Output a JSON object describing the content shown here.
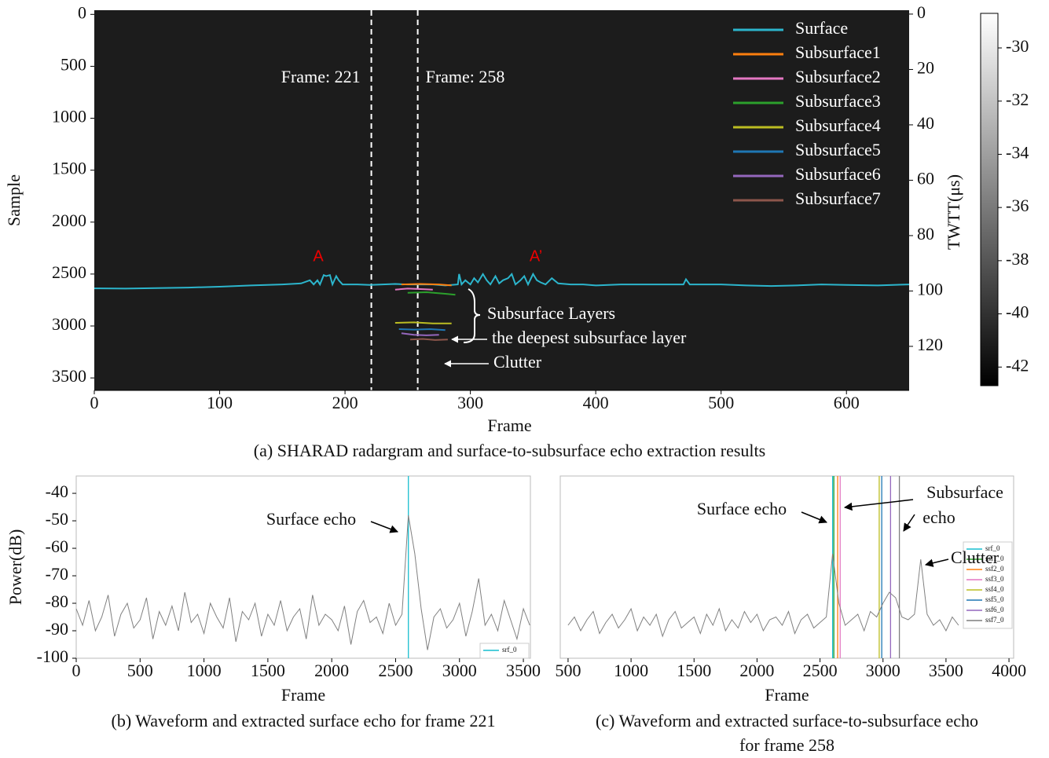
{
  "chart_data": [
    {
      "type": "radargram",
      "caption": "(a) SHARAD radargram and surface-to-subsurface echo extraction results",
      "xlabel": "Frame",
      "ylabel": "Sample",
      "y2label": "TWTT(μs)",
      "xlim": [
        0,
        650
      ],
      "xticks": [
        0,
        100,
        200,
        300,
        400,
        500,
        600
      ],
      "ylim": [
        -40,
        3620
      ],
      "y_inverted": true,
      "yticks": [
        0,
        500,
        1000,
        1500,
        2000,
        2500,
        3000,
        3500
      ],
      "y2lim": [
        -1.4,
        135.9
      ],
      "y2ticks": [
        0,
        20,
        40,
        60,
        80,
        100,
        120
      ],
      "colorbar": {
        "lim": [
          -42.7,
          -28.7
        ],
        "ticks": [
          -30,
          -32,
          -34,
          -36,
          -38,
          -40,
          -42
        ]
      },
      "legend": "upper right",
      "frame_lines": [
        {
          "x": 221,
          "label": "Frame: 221"
        },
        {
          "x": 258,
          "label": "Frame: 258"
        }
      ],
      "annotations": [
        "A",
        "A’",
        "Subsurface Layers",
        "the deepest subsurface layer",
        "Clutter"
      ],
      "series": [
        {
          "name": "Surface",
          "color": "#2cb5cc",
          "x": [
            0,
            25,
            50,
            75,
            100,
            125,
            150,
            165,
            172,
            175,
            178,
            180,
            183,
            185,
            188,
            190,
            193,
            195,
            198,
            200,
            210,
            220,
            230,
            240,
            250,
            260,
            270,
            280,
            290,
            291,
            293,
            296,
            300,
            303,
            306,
            310,
            313,
            316,
            320,
            323,
            326,
            330,
            333,
            336,
            340,
            343,
            346,
            350,
            353,
            356,
            360,
            365,
            370,
            380,
            390,
            400,
            410,
            420,
            440,
            460,
            470,
            472,
            475,
            480,
            500,
            520,
            540,
            560,
            580,
            600,
            625,
            650
          ],
          "values": [
            2638,
            2640,
            2635,
            2630,
            2622,
            2610,
            2600,
            2590,
            2560,
            2600,
            2560,
            2600,
            2510,
            2520,
            2510,
            2600,
            2520,
            2560,
            2600,
            2600,
            2600,
            2605,
            2600,
            2595,
            2600,
            2600,
            2600,
            2610,
            2600,
            2500,
            2600,
            2560,
            2600,
            2540,
            2580,
            2500,
            2560,
            2600,
            2520,
            2590,
            2560,
            2540,
            2500,
            2600,
            2560,
            2520,
            2600,
            2500,
            2560,
            2580,
            2600,
            2540,
            2590,
            2600,
            2600,
            2610,
            2605,
            2600,
            2600,
            2600,
            2600,
            2550,
            2600,
            2600,
            2600,
            2610,
            2615,
            2610,
            2600,
            2605,
            2610,
            2600
          ]
        },
        {
          "name": "Subsurface1",
          "color": "#ff7f0e",
          "x": [
            245,
            260,
            275,
            285
          ],
          "values": [
            2600,
            2595,
            2600,
            2610
          ]
        },
        {
          "name": "Subsurface2",
          "color": "#e377c2",
          "x": [
            240,
            250,
            262,
            270
          ],
          "values": [
            2650,
            2640,
            2645,
            2650
          ]
        },
        {
          "name": "Subsurface3",
          "color": "#2ca02c",
          "x": [
            250,
            265,
            280,
            288
          ],
          "values": [
            2680,
            2675,
            2690,
            2700
          ]
        },
        {
          "name": "Subsurface4",
          "color": "#bcbd22",
          "x": [
            240,
            255,
            270,
            285
          ],
          "values": [
            2970,
            2965,
            2975,
            2975
          ]
        },
        {
          "name": "Subsurface5",
          "color": "#1f77b4",
          "x": [
            243,
            255,
            268,
            280
          ],
          "values": [
            3030,
            3035,
            3030,
            3040
          ]
        },
        {
          "name": "Subsurface6",
          "color": "#9467bd",
          "x": [
            245,
            255,
            265,
            275
          ],
          "values": [
            3070,
            3085,
            3090,
            3085
          ]
        },
        {
          "name": "Subsurface7",
          "color": "#8c564b",
          "x": [
            252,
            262,
            272,
            282
          ],
          "values": [
            3130,
            3125,
            3135,
            3130
          ]
        }
      ]
    },
    {
      "type": "waveform",
      "caption": "(b) Waveform and extracted surface echo for frame 221",
      "xlabel": "Frame",
      "ylabel": "Power(dB)",
      "xlim": [
        0,
        3555
      ],
      "xticks": [
        0,
        500,
        1000,
        1500,
        2000,
        2500,
        3000,
        3500
      ],
      "ylim": [
        -100,
        -33.7
      ],
      "yticks": [
        -100,
        -90,
        -80,
        -70,
        -60,
        -50,
        -40
      ],
      "legend": "lower right",
      "annotations": [
        "Surface echo"
      ],
      "waveform": {
        "color": "#808080",
        "x": [
          0,
          50,
          100,
          150,
          200,
          250,
          300,
          350,
          400,
          450,
          500,
          550,
          600,
          650,
          700,
          750,
          800,
          850,
          900,
          950,
          1000,
          1050,
          1100,
          1150,
          1200,
          1250,
          1300,
          1350,
          1400,
          1450,
          1500,
          1550,
          1600,
          1650,
          1700,
          1750,
          1800,
          1850,
          1900,
          1950,
          2000,
          2050,
          2100,
          2150,
          2200,
          2250,
          2300,
          2350,
          2400,
          2450,
          2500,
          2550,
          2600,
          2650,
          2700,
          2750,
          2800,
          2850,
          2900,
          2950,
          3000,
          3050,
          3100,
          3150,
          3200,
          3250,
          3300,
          3350,
          3400,
          3450,
          3500,
          3550
        ],
        "values": [
          -82,
          -88,
          -79,
          -90,
          -85,
          -77,
          -92,
          -84,
          -80,
          -89,
          -86,
          -78,
          -93,
          -83,
          -88,
          -81,
          -90,
          -76,
          -87,
          -84,
          -91,
          -80,
          -85,
          -89,
          -78,
          -94,
          -83,
          -86,
          -80,
          -92,
          -84,
          -88,
          -79,
          -90,
          -85,
          -82,
          -93,
          -77,
          -88,
          -84,
          -86,
          -90,
          -81,
          -95,
          -83,
          -79,
          -87,
          -85,
          -91,
          -80,
          -88,
          -84,
          -48,
          -62,
          -82,
          -97,
          -85,
          -82,
          -89,
          -86,
          -80,
          -92,
          -83,
          -71,
          -88,
          -84,
          -90,
          -79,
          -86,
          -93,
          -82,
          -88
        ]
      },
      "vlines": [
        {
          "name": "srf_0",
          "x": 2600,
          "color": "#17becf"
        }
      ]
    },
    {
      "type": "waveform",
      "caption": [
        "(c) Waveform and extracted surface-to-subsurface echo",
        "for frame 258"
      ],
      "xlabel": "Frame",
      "xlim": [
        438,
        4037
      ],
      "xticks": [
        500,
        1000,
        1500,
        2000,
        2500,
        3000,
        3500,
        4000
      ],
      "ylim": [
        -100,
        -33.7
      ],
      "legend": "right",
      "annotations": [
        "Surface echo",
        "Subsurface",
        "echo",
        "Clutter"
      ],
      "waveform": {
        "color": "#808080",
        "x": [
          500,
          550,
          600,
          650,
          700,
          750,
          800,
          850,
          900,
          950,
          1000,
          1050,
          1100,
          1150,
          1200,
          1250,
          1300,
          1350,
          1400,
          1450,
          1500,
          1550,
          1600,
          1650,
          1700,
          1750,
          1800,
          1850,
          1900,
          1950,
          2000,
          2050,
          2100,
          2150,
          2200,
          2250,
          2300,
          2350,
          2400,
          2450,
          2500,
          2550,
          2600,
          2650,
          2700,
          2750,
          2800,
          2850,
          2900,
          2950,
          3000,
          3050,
          3100,
          3150,
          3200,
          3250,
          3300,
          3350,
          3400,
          3450,
          3500,
          3550,
          3600
        ],
        "values": [
          -88,
          -85,
          -90,
          -86,
          -83,
          -91,
          -87,
          -84,
          -89,
          -86,
          -82,
          -90,
          -85,
          -88,
          -84,
          -92,
          -86,
          -83,
          -89,
          -87,
          -85,
          -91,
          -84,
          -88,
          -82,
          -90,
          -86,
          -89,
          -83,
          -87,
          -84,
          -90,
          -86,
          -85,
          -88,
          -83,
          -91,
          -86,
          -84,
          -89,
          -87,
          -85,
          -62,
          -80,
          -88,
          -86,
          -84,
          -90,
          -83,
          -85,
          -80,
          -76,
          -78,
          -85,
          -86,
          -84,
          -64,
          -84,
          -88,
          -86,
          -90,
          -85,
          -88
        ]
      },
      "vlines": [
        {
          "name": "srf_0",
          "x": 2600,
          "color": "#17becf"
        },
        {
          "name": "ssf1_0",
          "x": 2610,
          "color": "#2ca02c"
        },
        {
          "name": "ssf2_0",
          "x": 2640,
          "color": "#ff7f0e"
        },
        {
          "name": "ssf3_0",
          "x": 2660,
          "color": "#e377c2"
        },
        {
          "name": "ssf4_0",
          "x": 2970,
          "color": "#bcbd22"
        },
        {
          "name": "ssf5_0",
          "x": 2990,
          "color": "#1f77b4"
        },
        {
          "name": "ssf6_0",
          "x": 3060,
          "color": "#9467bd"
        },
        {
          "name": "ssf7_0",
          "x": 3130,
          "color": "#7f7f7f"
        }
      ]
    }
  ]
}
